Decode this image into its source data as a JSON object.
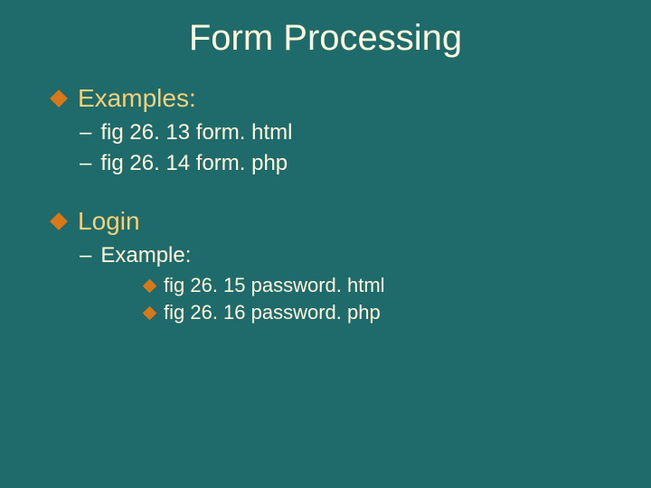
{
  "colors": {
    "background": "#1f6b6b",
    "title": "#fff8dc",
    "heading": "#f4d079",
    "body": "#fff8dc",
    "bullet": "#d97818"
  },
  "typography": {
    "title_fontsize": 40,
    "level1_fontsize": 28,
    "level2_fontsize": 24,
    "level3_fontsize": 22,
    "font_family": "Verdana"
  },
  "slide": {
    "title": "Form Processing",
    "sections": [
      {
        "heading": "Examples:",
        "items": [
          {
            "text": "fig 26. 13 form. html"
          },
          {
            "text": "fig 26. 14 form. php"
          }
        ]
      },
      {
        "heading": "Login",
        "items": [
          {
            "text": "Example:",
            "subitems": [
              {
                "text": "fig 26. 15 password. html"
              },
              {
                "text": "fig 26. 16 password. php"
              }
            ]
          }
        ]
      }
    ]
  }
}
